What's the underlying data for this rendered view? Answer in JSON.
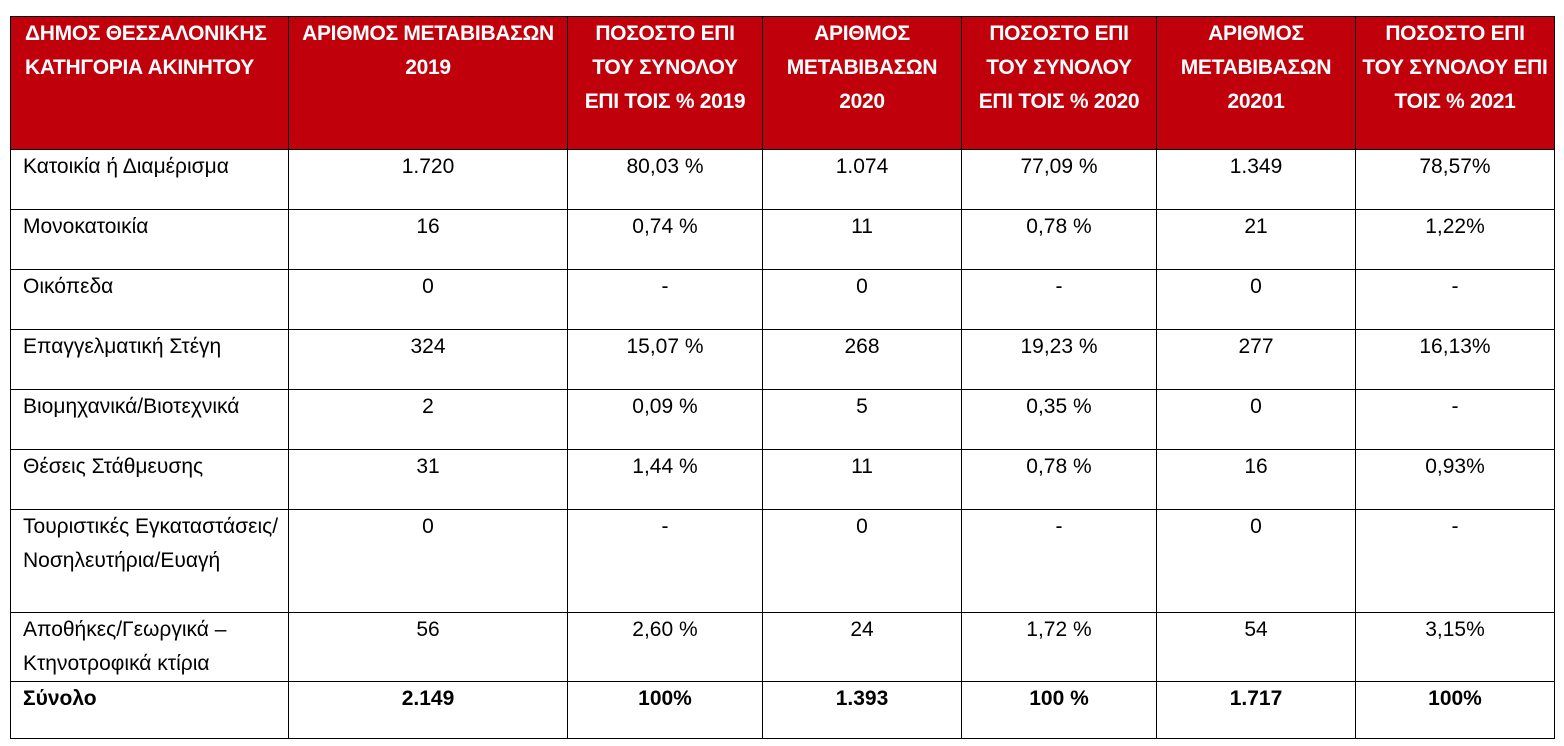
{
  "table": {
    "headers": [
      "ΔΗΜΟΣ ΘΕΣΣΑΛΟΝΙΚΗΣ ΚΑΤΗΓΟΡΙΑ ΑΚΙΝΗΤΟΥ",
      "ΑΡΙΘΜΟΣ ΜΕΤΑΒΙΒΑΣΩΝ 2019",
      "ΠΟΣΟΣΤΟ ΕΠΙ ΤΟΥ ΣΥΝΟΛΟΥ ΕΠΙ ΤΟΙΣ % 2019",
      "ΑΡΙΘΜΟΣ ΜΕΤΑΒΙΒΑΣΩΝ 2020",
      "ΠΟΣΟΣΤΟ ΕΠΙ ΤΟΥ ΣΥΝΟΛΟΥ ΕΠΙ ΤΟΙΣ % 2020",
      "ΑΡΙΘΜΟΣ ΜΕΤΑΒΙΒΑΣΩΝ 20201",
      "ΠΟΣΟΣΤΟ ΕΠΙ ΤΟΥ ΣΥΝΟΛΟΥ ΕΠΙ ΤΟΙΣ % 2021"
    ],
    "rows": [
      [
        "Κατοικία ή Διαμέρισμα",
        "1.720",
        "80,03 %",
        "1.074",
        "77,09 %",
        "1.349",
        "78,57%"
      ],
      [
        "Μονοκατοικία",
        "16",
        "0,74 %",
        "11",
        "0,78 %",
        "21",
        "1,22%"
      ],
      [
        "Οικόπεδα",
        "0",
        "-",
        "0",
        "-",
        "0",
        "-"
      ],
      [
        "Επαγγελματική Στέγη",
        "324",
        "15,07 %",
        "268",
        "19,23 %",
        "277",
        "16,13%"
      ],
      [
        "Βιομηχανικά/Βιοτεχνικά",
        "2",
        "0,09 %",
        "5",
        "0,35 %",
        "0",
        "-"
      ],
      [
        "Θέσεις Στάθμευσης",
        "31",
        "1,44 %",
        "11",
        "0,78 %",
        "16",
        "0,93%"
      ],
      [
        "Τουριστικές Εγκαταστάσεις/Νοσηλευτήρια/Ευαγή",
        "0",
        "-",
        "0",
        "-",
        "0",
        "-"
      ],
      [
        "Αποθήκες/Γεωργικά – Κτηνοτροφικά κτίρια",
        "56",
        "2,60 %",
        "24",
        "1,72 %",
        "54",
        "3,15%"
      ]
    ],
    "total": [
      "Σύνολο",
      "2.149",
      "100%",
      "1.393",
      "100 %",
      "1.717",
      "100%"
    ]
  },
  "colors": {
    "header_background": "#c0000b",
    "header_text": "#ffffff",
    "border": "#000000"
  }
}
